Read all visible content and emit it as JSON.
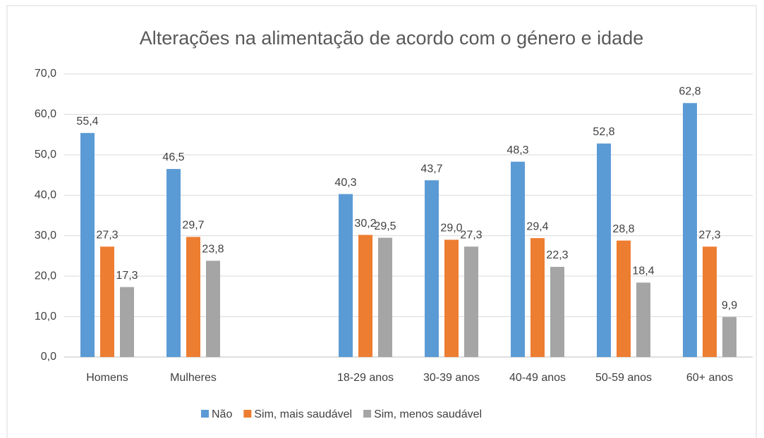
{
  "chart_data": {
    "type": "bar",
    "title": "Alterações na alimentação de acordo com o género e idade",
    "categories": [
      "Homens",
      "Mulheres",
      null,
      "18-29 anos",
      "30-39 anos",
      "40-49 anos",
      "50-59 anos",
      "60+ anos"
    ],
    "series": [
      {
        "name": "Não",
        "color": "#5b9bd5",
        "values": [
          55.4,
          46.5,
          null,
          40.3,
          43.7,
          48.3,
          52.8,
          62.8
        ],
        "value_labels": [
          "55,4",
          "46,5",
          null,
          "40,3",
          "43,7",
          "48,3",
          "52,8",
          "62,8"
        ]
      },
      {
        "name": "Sim, mais saudável",
        "color": "#ed7d31",
        "values": [
          27.3,
          29.7,
          null,
          30.2,
          29.0,
          29.4,
          28.8,
          27.3
        ],
        "value_labels": [
          "27,3",
          "29,7",
          null,
          "30,2",
          "29,0",
          "29,4",
          "28,8",
          "27,3"
        ]
      },
      {
        "name": "Sim, menos saudável",
        "color": "#a5a5a5",
        "values": [
          17.3,
          23.8,
          null,
          29.5,
          27.3,
          22.3,
          18.4,
          9.9
        ],
        "value_labels": [
          "17,3",
          "23,8",
          null,
          "29,5",
          "27,3",
          "22,3",
          "18,4",
          "9,9"
        ]
      }
    ],
    "ylim": [
      0,
      70
    ],
    "yticks": [
      {
        "value": 0,
        "label": "0,0"
      },
      {
        "value": 10,
        "label": "10,0"
      },
      {
        "value": 20,
        "label": "20,0"
      },
      {
        "value": 30,
        "label": "30,0"
      },
      {
        "value": 40,
        "label": "40,0"
      },
      {
        "value": 50,
        "label": "50,0"
      },
      {
        "value": 60,
        "label": "60,0"
      },
      {
        "value": 70,
        "label": "70,0"
      }
    ],
    "grid": true,
    "legend": "bottom"
  }
}
